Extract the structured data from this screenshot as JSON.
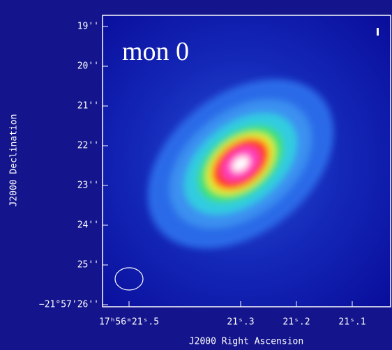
{
  "title": "mon 0",
  "y_axis": {
    "label": "J2000 Declination",
    "ticks": [
      "19''",
      "20''",
      "21''",
      "22''",
      "23''",
      "24''",
      "25''",
      "−21°57'26''"
    ]
  },
  "x_axis": {
    "label": "J2000 Right Ascension",
    "ticks": [
      "17ʰ56ᵐ21ˢ.5",
      "21ˢ.3",
      "21ˢ.2",
      "21ˢ.1"
    ]
  }
}
